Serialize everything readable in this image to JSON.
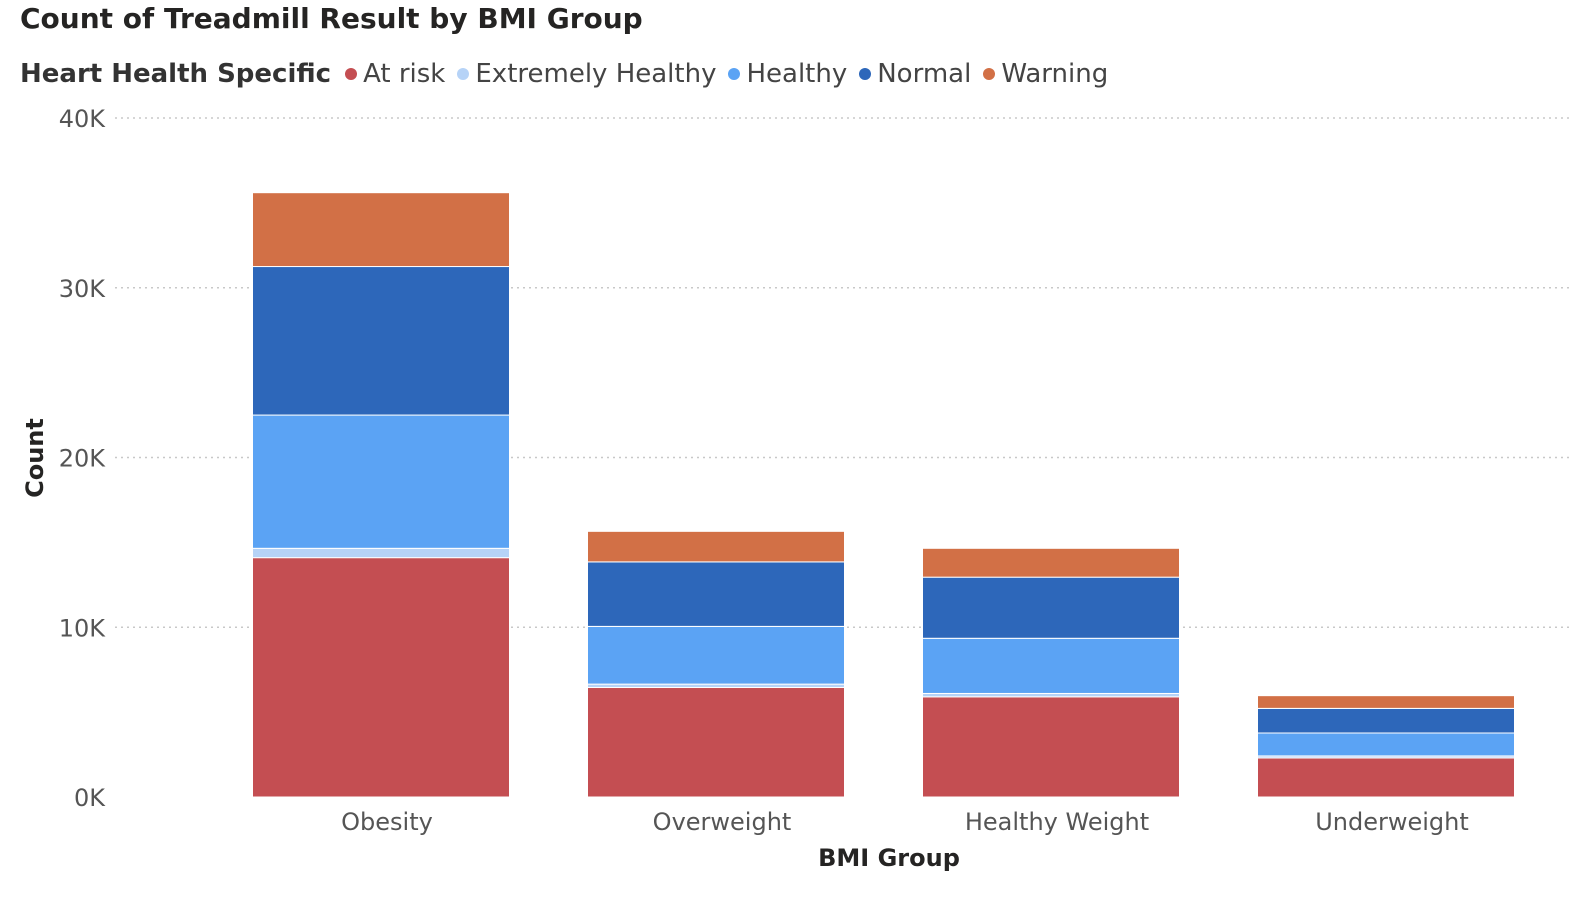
{
  "chart_data": {
    "type": "bar",
    "stacked": true,
    "title": "Count of Treadmill Result by BMI Group",
    "legend_title": "Heart Health Specific",
    "legend_position": "top-left",
    "xlabel": "BMI Group",
    "ylabel": "Count",
    "ylim": [
      0,
      40000
    ],
    "yticks": [
      0,
      10000,
      20000,
      30000,
      40000
    ],
    "ytick_labels": [
      "0K",
      "10K",
      "20K",
      "30K",
      "40K"
    ],
    "grid": true,
    "categories": [
      "Obesity",
      "Overweight",
      "Healthy Weight",
      "Underweight"
    ],
    "series": [
      {
        "name": "At risk",
        "color": "#C44E52",
        "values": [
          14100,
          6450,
          5900,
          2300
        ]
      },
      {
        "name": "Extremely Healthy",
        "color": "#B6D3F7",
        "values": [
          550,
          200,
          200,
          120
        ]
      },
      {
        "name": "Healthy",
        "color": "#5BA3F4",
        "values": [
          7850,
          3400,
          3250,
          1350
        ]
      },
      {
        "name": "Normal",
        "color": "#2D67BA",
        "values": [
          8750,
          3800,
          3600,
          1450
        ]
      },
      {
        "name": "Warning",
        "color": "#D27046",
        "values": [
          4350,
          1800,
          1700,
          750
        ]
      }
    ]
  }
}
